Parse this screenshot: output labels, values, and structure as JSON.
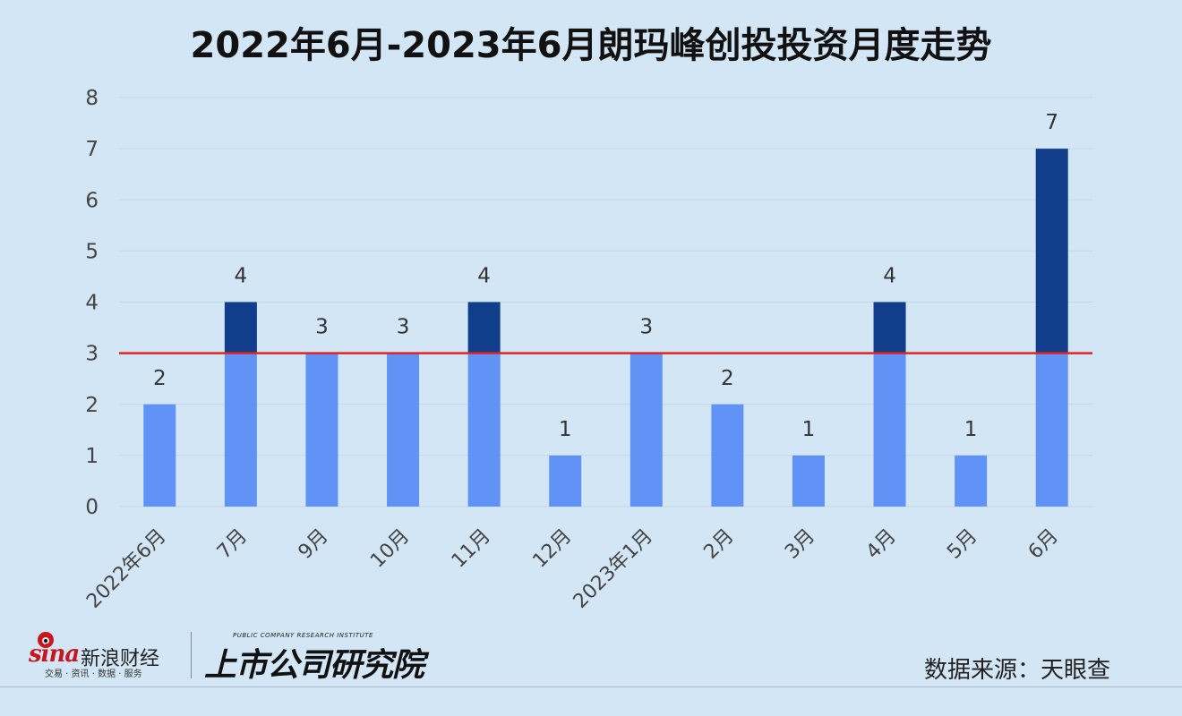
{
  "chart_data": {
    "type": "bar",
    "title": "2022年6月-2023年6月朗玛峰创投投资月度走势",
    "categories": [
      "2022年6月",
      "7月",
      "9月",
      "10月",
      "11月",
      "12月",
      "2023年1月",
      "2月",
      "3月",
      "4月",
      "5月",
      "6月"
    ],
    "values": [
      2,
      4,
      3,
      3,
      4,
      1,
      3,
      2,
      1,
      4,
      1,
      7
    ],
    "ylim": [
      0,
      8
    ],
    "yticks": [
      "0",
      "1",
      "2",
      "3",
      "4",
      "5",
      "6",
      "7",
      "8"
    ],
    "reference_line": 3,
    "grid": true,
    "colors": {
      "bar": "#6193f7",
      "bar_above_reference": "#113e8b",
      "reference_line": "#e02424"
    }
  },
  "footer": {
    "source": "数据来源：天眼查",
    "sina_logo_word": "sina",
    "sina_logo_cn": "新浪财经",
    "sina_logo_sub": "交易 · 资讯 · 数据 · 服务",
    "institute_en": "PUBLIC COMPANY RESEARCH INSTITUTE",
    "institute_cn": "上市公司研究院"
  }
}
